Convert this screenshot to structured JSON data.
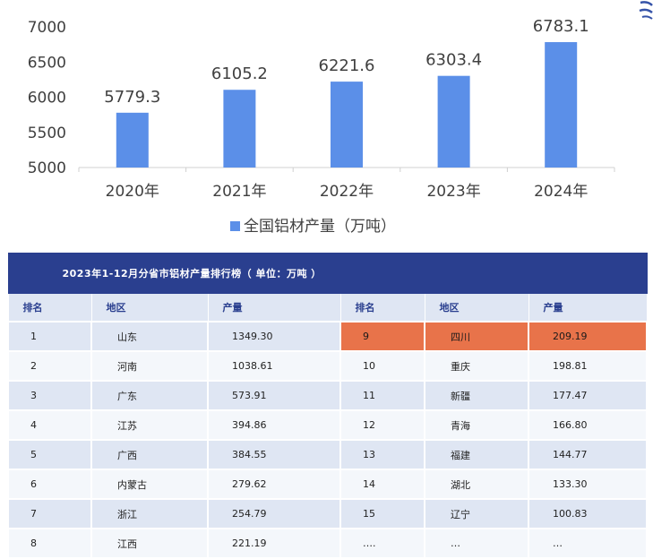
{
  "chart_data": {
    "type": "bar",
    "categories": [
      "2020年",
      "2021年",
      "2022年",
      "2023年",
      "2024年"
    ],
    "series": [
      {
        "name": "全国铝材产量（万吨）",
        "values": [
          5779.3,
          6105.2,
          6221.6,
          6303.4,
          6783.1
        ]
      }
    ],
    "ylim": [
      5000,
      7000
    ],
    "yticks": [
      5000,
      5500,
      6000,
      6500,
      7000
    ],
    "legend": "bottom",
    "grid": false,
    "bar_color": "#5b8fe8"
  },
  "table": {
    "title": "2023年1-12月分省市铝材产量排行榜（ 单位：万吨 ）",
    "headers": [
      "排名",
      "地区",
      "产量",
      "排名",
      "地区",
      "产量"
    ],
    "rows": [
      [
        "1",
        "山东",
        "1349.30",
        "9",
        "四川",
        "209.19"
      ],
      [
        "2",
        "河南",
        "1038.61",
        "10",
        "重庆",
        "198.81"
      ],
      [
        "3",
        "广东",
        "573.91",
        "11",
        "新疆",
        "177.47"
      ],
      [
        "4",
        "江苏",
        "394.86",
        "12",
        "青海",
        "166.80"
      ],
      [
        "5",
        "广西",
        "384.55",
        "13",
        "福建",
        "144.77"
      ],
      [
        "6",
        "内蒙古",
        "279.62",
        "14",
        "湖北",
        "133.30"
      ],
      [
        "7",
        "浙江",
        "254.79",
        "15",
        "辽宁",
        "100.83"
      ],
      [
        "8",
        "江西",
        "221.19",
        "….",
        "…",
        "…"
      ]
    ],
    "highlight_color": "#e8734a",
    "header_color": "#2a3f8f"
  }
}
